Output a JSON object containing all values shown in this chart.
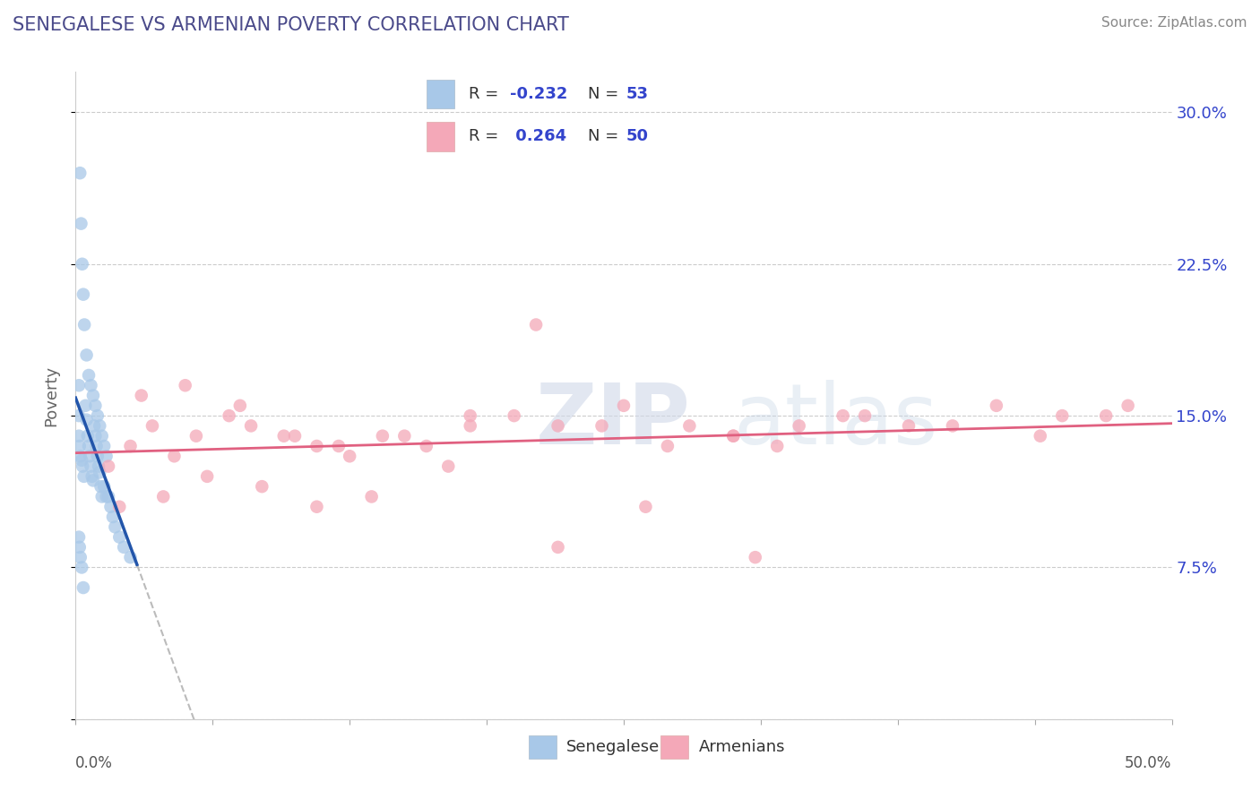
{
  "title": "SENEGALESE VS ARMENIAN POVERTY CORRELATION CHART",
  "source": "Source: ZipAtlas.com",
  "ylabel": "Poverty",
  "xlim": [
    0,
    50
  ],
  "ylim": [
    0,
    32
  ],
  "yticks": [
    0,
    7.5,
    15.0,
    22.5,
    30.0
  ],
  "ytick_labels": [
    "",
    "7.5%",
    "15.0%",
    "22.5%",
    "30.0%"
  ],
  "legend_line1": "R = -0.232   N = 53",
  "legend_line2": "R =  0.264   N = 50",
  "color_senegalese": "#a8c8e8",
  "color_armenians": "#f4a8b8",
  "color_trend_senegalese": "#2255aa",
  "color_trend_armenians": "#e06080",
  "color_title": "#4a4a8a",
  "color_legend_text": "#3344cc",
  "color_source": "#888888",
  "color_grid": "#cccccc",
  "color_dashed_trend": "#bbbbbb",
  "background_color": "#ffffff",
  "senegalese_x": [
    0.15,
    0.15,
    0.15,
    0.18,
    0.22,
    0.28,
    0.32,
    0.38,
    0.45,
    0.5,
    0.55,
    0.6,
    0.65,
    0.7,
    0.75,
    0.8,
    0.85,
    0.9,
    0.95,
    1.0,
    1.05,
    1.1,
    1.15,
    1.2,
    1.3,
    1.4,
    1.5,
    1.6,
    1.7,
    1.8,
    2.0,
    2.2,
    2.5,
    0.2,
    0.25,
    0.3,
    0.35,
    0.4,
    0.5,
    0.6,
    0.7,
    0.8,
    0.9,
    1.0,
    1.1,
    1.2,
    1.3,
    1.4,
    0.15,
    0.18,
    0.22,
    0.28,
    0.35
  ],
  "senegalese_y": [
    16.5,
    15.0,
    14.0,
    13.5,
    13.0,
    12.8,
    12.5,
    12.0,
    15.5,
    14.8,
    14.0,
    13.5,
    13.0,
    12.5,
    12.0,
    11.8,
    14.5,
    14.0,
    13.5,
    13.0,
    12.5,
    12.2,
    11.5,
    11.0,
    11.5,
    11.0,
    11.0,
    10.5,
    10.0,
    9.5,
    9.0,
    8.5,
    8.0,
    27.0,
    24.5,
    22.5,
    21.0,
    19.5,
    18.0,
    17.0,
    16.5,
    16.0,
    15.5,
    15.0,
    14.5,
    14.0,
    13.5,
    13.0,
    9.0,
    8.5,
    8.0,
    7.5,
    6.5
  ],
  "armenians_x": [
    1.5,
    2.5,
    3.5,
    4.5,
    5.5,
    7.0,
    8.0,
    9.5,
    11.0,
    12.5,
    14.0,
    16.0,
    18.0,
    20.0,
    22.0,
    25.0,
    28.0,
    30.0,
    32.0,
    35.0,
    38.0,
    42.0,
    45.0,
    48.0,
    3.0,
    5.0,
    7.5,
    10.0,
    12.0,
    15.0,
    18.0,
    21.0,
    24.0,
    27.0,
    30.0,
    33.0,
    36.0,
    40.0,
    44.0,
    47.0,
    2.0,
    4.0,
    6.0,
    8.5,
    11.0,
    13.5,
    17.0,
    22.0,
    26.0,
    31.0
  ],
  "armenians_y": [
    12.5,
    13.5,
    14.5,
    13.0,
    14.0,
    15.0,
    14.5,
    14.0,
    13.5,
    13.0,
    14.0,
    13.5,
    14.5,
    15.0,
    14.5,
    15.5,
    14.5,
    14.0,
    13.5,
    15.0,
    14.5,
    15.5,
    15.0,
    15.5,
    16.0,
    16.5,
    15.5,
    14.0,
    13.5,
    14.0,
    15.0,
    19.5,
    14.5,
    13.5,
    14.0,
    14.5,
    15.0,
    14.5,
    14.0,
    15.0,
    10.5,
    11.0,
    12.0,
    11.5,
    10.5,
    11.0,
    12.5,
    8.5,
    10.5,
    8.0
  ],
  "figsize": [
    14.06,
    8.92
  ],
  "dpi": 100,
  "sen_trend_x_start": 0.0,
  "sen_trend_x_end": 2.8,
  "sen_trend_x_dash_end": 14.0,
  "arm_trend_x_start": 0.0,
  "arm_trend_x_end": 50.0
}
